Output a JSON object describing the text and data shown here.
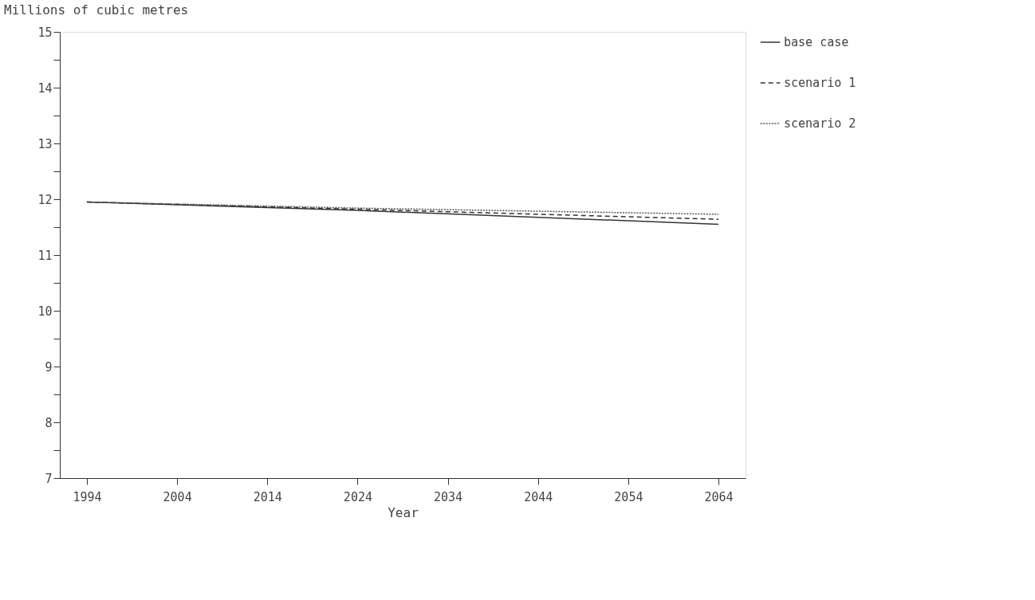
{
  "chart_data": {
    "type": "line",
    "xlabel": "Year",
    "ylabel": "Millions of cubic metres",
    "x": [
      1994,
      2024,
      2064
    ],
    "series": [
      {
        "name": "base case",
        "color": "#333333",
        "line_style": "solid",
        "values": [
          11.95,
          11.8,
          11.55
        ]
      },
      {
        "name": "scenario 1",
        "color": "#333333",
        "line_style": "dashed",
        "values": [
          11.95,
          11.82,
          11.64
        ]
      },
      {
        "name": "scenario 2",
        "color": "#555555",
        "line_style": "dotted",
        "values": [
          11.95,
          11.84,
          11.73
        ]
      }
    ],
    "xlim": [
      1991,
      2067
    ],
    "xticks": [
      1994,
      2004,
      2014,
      2024,
      2034,
      2044,
      2054,
      2064
    ],
    "ylim": [
      7,
      15
    ],
    "yticks": [
      7,
      {
        "value": 7.5,
        "label": null
      },
      8,
      {
        "value": 8.5,
        "label": null
      },
      9,
      {
        "value": 9.5,
        "label": null
      },
      10,
      {
        "value": 10.5,
        "label": null
      },
      11,
      {
        "value": 11.5,
        "label": null
      },
      12,
      {
        "value": 12.5,
        "label": null
      },
      13,
      {
        "value": 13.5,
        "label": null
      },
      14,
      {
        "value": 14.5,
        "label": null
      },
      15
    ],
    "grid": false,
    "legend": "right",
    "marker": "none"
  }
}
